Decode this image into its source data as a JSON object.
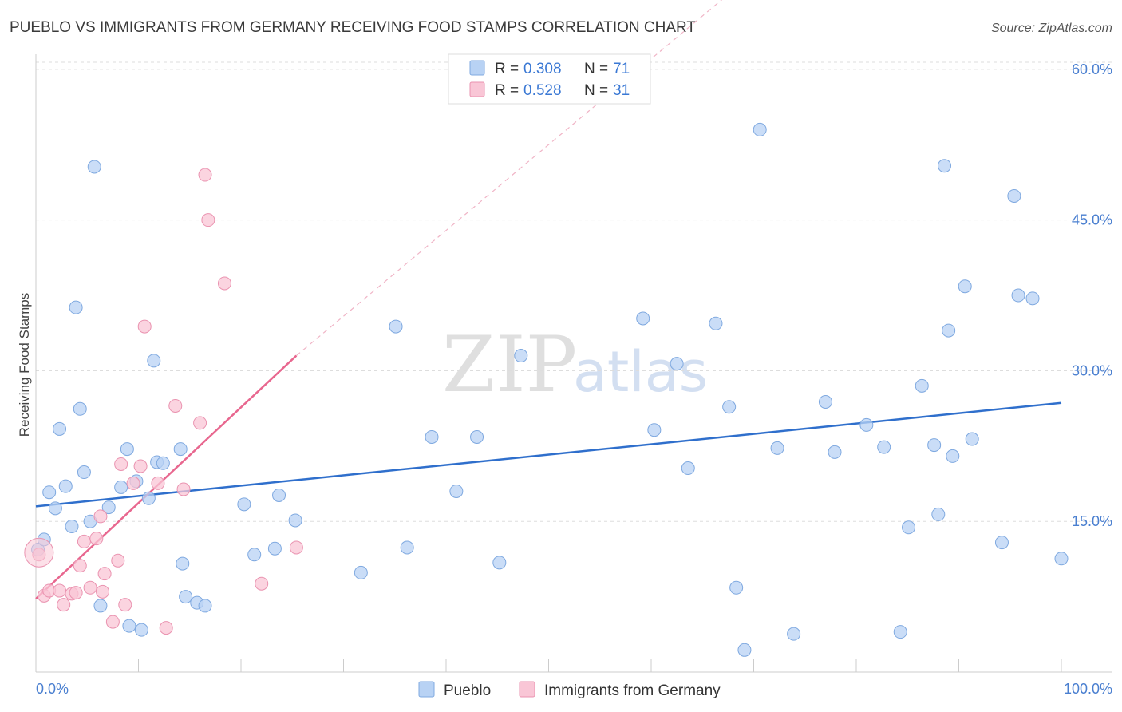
{
  "title": "PUEBLO VS IMMIGRANTS FROM GERMANY RECEIVING FOOD STAMPS CORRELATION CHART",
  "source": "Source: ZipAtlas.com",
  "watermark": {
    "zip": "ZIP",
    "atlas": "atlas"
  },
  "colors": {
    "pueblo_fill": "#b8d2f4",
    "pueblo_stroke": "#7fa9e0",
    "pueblo_line": "#2f6fcc",
    "germany_fill": "#f9c6d6",
    "germany_stroke": "#ea93b0",
    "germany_line": "#e8678f",
    "grid": "#dddddd",
    "tick_text": "#4a7fd0"
  },
  "legend": {
    "rows": [
      {
        "r_label": "R =",
        "r_value": "0.308",
        "n_label": "N =",
        "n_value": "71"
      },
      {
        "r_label": "R =",
        "r_value": "0.528",
        "n_label": "N =",
        "n_value": "31"
      }
    ]
  },
  "chart_data": {
    "type": "scatter",
    "title": "PUEBLO VS IMMIGRANTS FROM GERMANY RECEIVING FOOD STAMPS CORRELATION CHART",
    "xlabel": "",
    "ylabel": "Receiving Food Stamps",
    "xlim": [
      0,
      100
    ],
    "ylim": [
      0,
      61.5
    ],
    "y_ticks": [
      15,
      30,
      45,
      60
    ],
    "y_tick_labels": [
      "15.0%",
      "30.0%",
      "45.0%",
      "60.0%"
    ],
    "x_tick_labels": [
      "0.0%",
      "100.0%"
    ],
    "grid": true,
    "legend_position": "bottom-center",
    "series": [
      {
        "name": "Pueblo",
        "r": 0.308,
        "n": 71,
        "trend": {
          "x": [
            0,
            100
          ],
          "y": [
            16.5,
            26.8
          ]
        },
        "points": [
          [
            0.2,
            12.2
          ],
          [
            0.8,
            13.2
          ],
          [
            1.3,
            17.9
          ],
          [
            1.9,
            16.3
          ],
          [
            2.3,
            24.2
          ],
          [
            2.9,
            18.5
          ],
          [
            3.5,
            14.5
          ],
          [
            3.9,
            36.3
          ],
          [
            4.3,
            26.2
          ],
          [
            4.7,
            19.9
          ],
          [
            5.3,
            15.0
          ],
          [
            5.7,
            50.3
          ],
          [
            6.3,
            6.6
          ],
          [
            7.1,
            16.4
          ],
          [
            8.3,
            18.4
          ],
          [
            8.9,
            22.2
          ],
          [
            9.1,
            4.6
          ],
          [
            9.8,
            19.0
          ],
          [
            10.3,
            4.2
          ],
          [
            11.0,
            17.3
          ],
          [
            11.5,
            31.0
          ],
          [
            11.8,
            20.9
          ],
          [
            12.4,
            20.8
          ],
          [
            14.1,
            22.2
          ],
          [
            14.3,
            10.8
          ],
          [
            14.6,
            7.5
          ],
          [
            15.7,
            6.9
          ],
          [
            16.5,
            6.6
          ],
          [
            20.3,
            16.7
          ],
          [
            21.3,
            11.7
          ],
          [
            23.3,
            12.3
          ],
          [
            23.7,
            17.6
          ],
          [
            25.3,
            15.1
          ],
          [
            31.7,
            9.9
          ],
          [
            35.1,
            34.4
          ],
          [
            36.2,
            12.4
          ],
          [
            38.6,
            23.4
          ],
          [
            41.0,
            18.0
          ],
          [
            43.0,
            23.4
          ],
          [
            45.2,
            10.9
          ],
          [
            47.3,
            31.5
          ],
          [
            59.2,
            35.2
          ],
          [
            60.3,
            24.1
          ],
          [
            62.5,
            30.7
          ],
          [
            63.6,
            20.3
          ],
          [
            66.3,
            34.7
          ],
          [
            67.6,
            26.4
          ],
          [
            68.3,
            8.4
          ],
          [
            69.1,
            2.2
          ],
          [
            70.6,
            54.0
          ],
          [
            72.3,
            22.3
          ],
          [
            73.9,
            3.8
          ],
          [
            77.0,
            26.9
          ],
          [
            77.9,
            21.9
          ],
          [
            81.0,
            24.6
          ],
          [
            82.7,
            22.4
          ],
          [
            84.3,
            4.0
          ],
          [
            85.1,
            14.4
          ],
          [
            86.4,
            28.5
          ],
          [
            87.6,
            22.6
          ],
          [
            88.0,
            15.7
          ],
          [
            88.6,
            50.4
          ],
          [
            89.0,
            34.0
          ],
          [
            89.4,
            21.5
          ],
          [
            90.6,
            38.4
          ],
          [
            91.3,
            23.2
          ],
          [
            94.2,
            12.9
          ],
          [
            95.4,
            47.4
          ],
          [
            95.8,
            37.5
          ],
          [
            97.2,
            37.2
          ],
          [
            100.0,
            11.3
          ]
        ]
      },
      {
        "name": "Immigrants from Germany",
        "r": 0.528,
        "n": 31,
        "trend": {
          "x": [
            0,
            25.4
          ],
          "y": [
            7.3,
            31.5
          ],
          "dashed_extension_to": [
            100,
            95.2
          ]
        },
        "points": [
          [
            0.3,
            11.7
          ],
          [
            0.8,
            7.6
          ],
          [
            1.3,
            8.1
          ],
          [
            2.3,
            8.1
          ],
          [
            2.7,
            6.7
          ],
          [
            3.5,
            7.8
          ],
          [
            3.9,
            7.9
          ],
          [
            4.3,
            10.6
          ],
          [
            4.7,
            13.0
          ],
          [
            5.3,
            8.4
          ],
          [
            5.9,
            13.3
          ],
          [
            6.3,
            15.5
          ],
          [
            6.7,
            9.8
          ],
          [
            7.5,
            5.0
          ],
          [
            8.0,
            11.1
          ],
          [
            8.3,
            20.7
          ],
          [
            8.7,
            6.7
          ],
          [
            9.5,
            18.8
          ],
          [
            10.2,
            20.5
          ],
          [
            10.6,
            34.4
          ],
          [
            11.9,
            18.8
          ],
          [
            12.7,
            4.4
          ],
          [
            13.6,
            26.5
          ],
          [
            14.4,
            18.2
          ],
          [
            16.0,
            24.8
          ],
          [
            16.5,
            49.5
          ],
          [
            16.8,
            45.0
          ],
          [
            18.4,
            38.7
          ],
          [
            22.0,
            8.8
          ],
          [
            25.4,
            12.4
          ],
          [
            6.5,
            8.0
          ]
        ]
      }
    ]
  }
}
